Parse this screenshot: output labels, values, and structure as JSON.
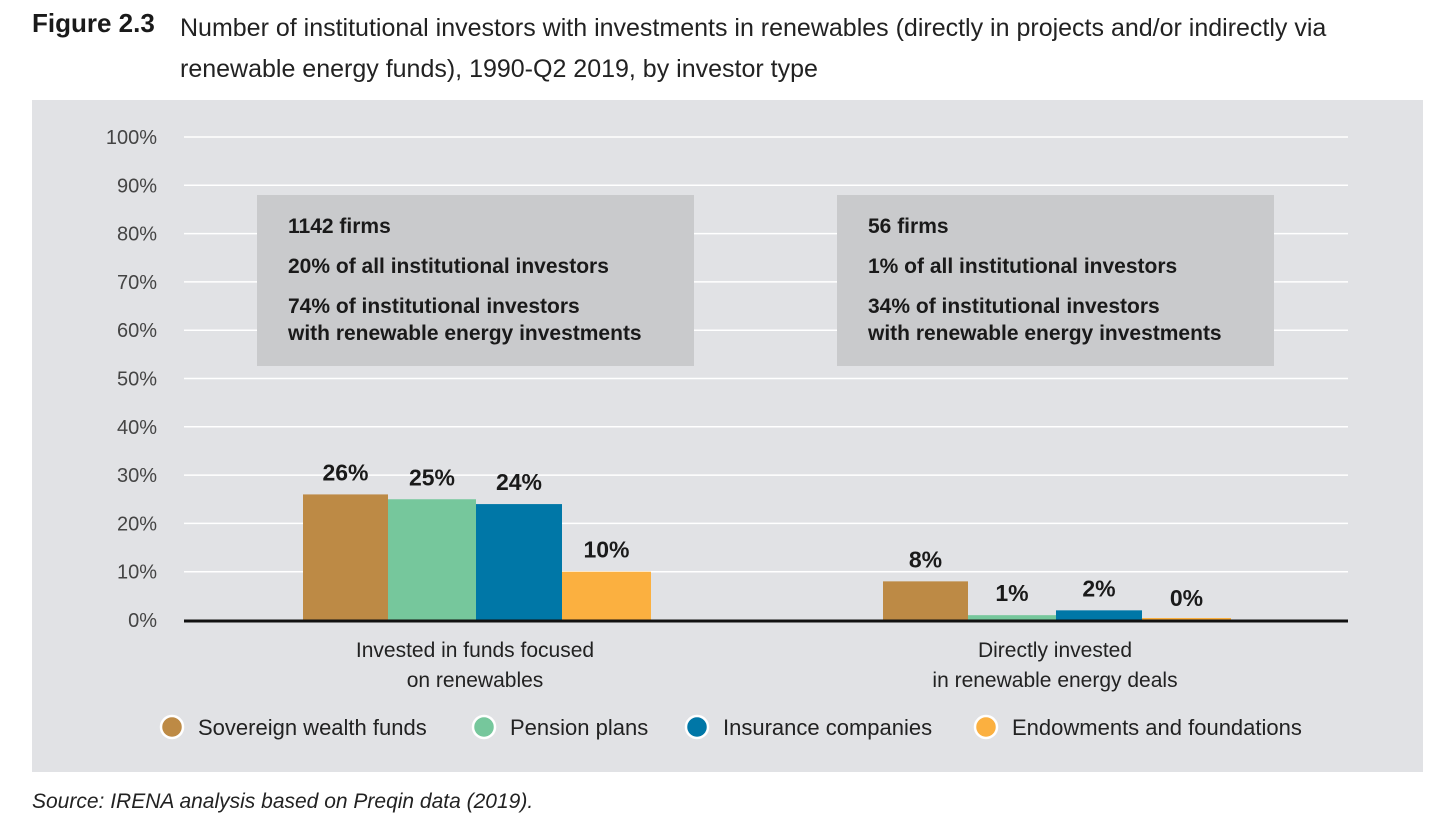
{
  "figure": {
    "label": "Figure 2.3",
    "title": "Number of institutional investors with investments in renewables (directly in projects and/or indirectly via renewable energy funds), 1990-Q2 2019, by investor type"
  },
  "source": "Source: IRENA analysis based on Preqin data (2019).",
  "chart_data": {
    "type": "bar",
    "categories": [
      [
        "Invested in funds focused",
        "on renewables"
      ],
      [
        "Directly invested",
        "in renewable energy deals"
      ]
    ],
    "series": [
      {
        "name": "Sovereign wealth funds",
        "color": "#bd8a45",
        "values": [
          26,
          8
        ],
        "labels": [
          "26%",
          "8%"
        ]
      },
      {
        "name": "Pension plans",
        "color": "#76c79c",
        "values": [
          25,
          1
        ],
        "labels": [
          "25%",
          "1%"
        ]
      },
      {
        "name": "Insurance companies",
        "color": "#0077a7",
        "values": [
          24,
          2
        ],
        "labels": [
          "24%",
          "2%"
        ]
      },
      {
        "name": "Endowments and foundations",
        "color": "#fbb040",
        "values": [
          10,
          0
        ],
        "labels": [
          "10%",
          "0%"
        ]
      }
    ],
    "ylim": [
      0,
      100
    ],
    "yticks": [
      "0%",
      "10%",
      "20%",
      "30%",
      "40%",
      "50%",
      "60%",
      "70%",
      "80%",
      "90%",
      "100%"
    ],
    "grid": true,
    "legend_position": "bottom",
    "annotations": [
      {
        "lines": [
          "1142 firms",
          "20% of all institutional investors",
          "74% of institutional investors",
          "with renewable energy investments"
        ]
      },
      {
        "lines": [
          "56 firms",
          "1% of all institutional investors",
          "34% of institutional investors",
          "with renewable energy investments"
        ]
      }
    ]
  }
}
